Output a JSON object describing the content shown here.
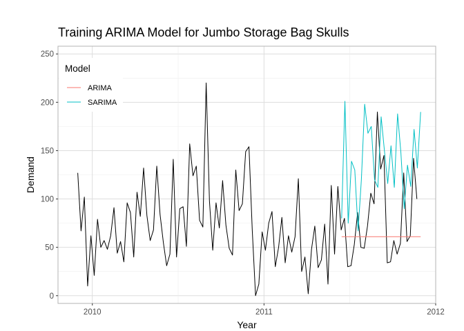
{
  "chart_data": {
    "type": "line",
    "title": "Training ARIMA Model for Jumbo Storage Bag Skulls",
    "xlabel": "Year",
    "ylabel": "Demand",
    "x_ticks": [
      "2010",
      "2011",
      "2012"
    ],
    "y_ticks": [
      "0",
      "50",
      "100",
      "150",
      "200",
      "250"
    ],
    "xlim": [
      "2009-10-20",
      "2012-01-01"
    ],
    "ylim": [
      -8,
      258
    ],
    "grid": true,
    "legend": {
      "title": "Model",
      "placement": "top-left",
      "entries": [
        {
          "label": "ARIMA",
          "color": "#F8766D"
        },
        {
          "label": "SARIMA",
          "color": "#00BFC4"
        }
      ]
    },
    "series": [
      {
        "color": "#000000",
        "start_date": "2009-12-01",
        "interval_days": 7,
        "values": [
          127,
          67,
          102,
          10,
          62,
          21,
          79,
          50,
          57,
          48,
          62,
          91,
          44,
          56,
          35,
          96,
          86,
          40,
          107,
          82,
          132,
          83,
          57,
          68,
          134,
          84,
          55,
          31,
          43,
          141,
          40,
          90,
          92,
          51,
          157,
          124,
          134,
          78,
          71,
          220,
          98,
          47,
          96,
          70,
          119,
          73,
          49,
          42,
          130,
          88,
          95,
          149,
          154,
          68,
          0,
          12,
          66,
          47,
          75,
          87,
          30,
          50,
          81,
          34,
          62,
          45,
          61,
          121,
          25,
          40,
          2,
          48,
          72,
          29,
          37,
          74,
          12,
          114,
          43,
          113,
          68,
          80,
          30,
          31,
          53,
          86,
          50,
          49,
          72,
          106,
          95,
          190,
          131,
          145,
          34,
          35,
          57,
          43,
          54,
          127,
          56,
          62,
          142,
          100
        ],
        "fit_start_index": 81
      },
      {
        "name": "ARIMA",
        "color": "#F8766D",
        "start_date": "2011-06-15",
        "interval_days": 7,
        "values": [
          61,
          61,
          61,
          61,
          61,
          61,
          61,
          61,
          61,
          61,
          61,
          61,
          61,
          61,
          61,
          61,
          61,
          61,
          61,
          61,
          61,
          61,
          61,
          61,
          61
        ]
      },
      {
        "name": "SARIMA",
        "color": "#00BFC4",
        "start_date": "2011-06-15",
        "interval_days": 7,
        "values": [
          80,
          201,
          75,
          139,
          130,
          67,
          120,
          198,
          168,
          175,
          120,
          112,
          185,
          150,
          116,
          155,
          112,
          188,
          148,
          90,
          135,
          113,
          172,
          132,
          190
        ]
      }
    ]
  }
}
